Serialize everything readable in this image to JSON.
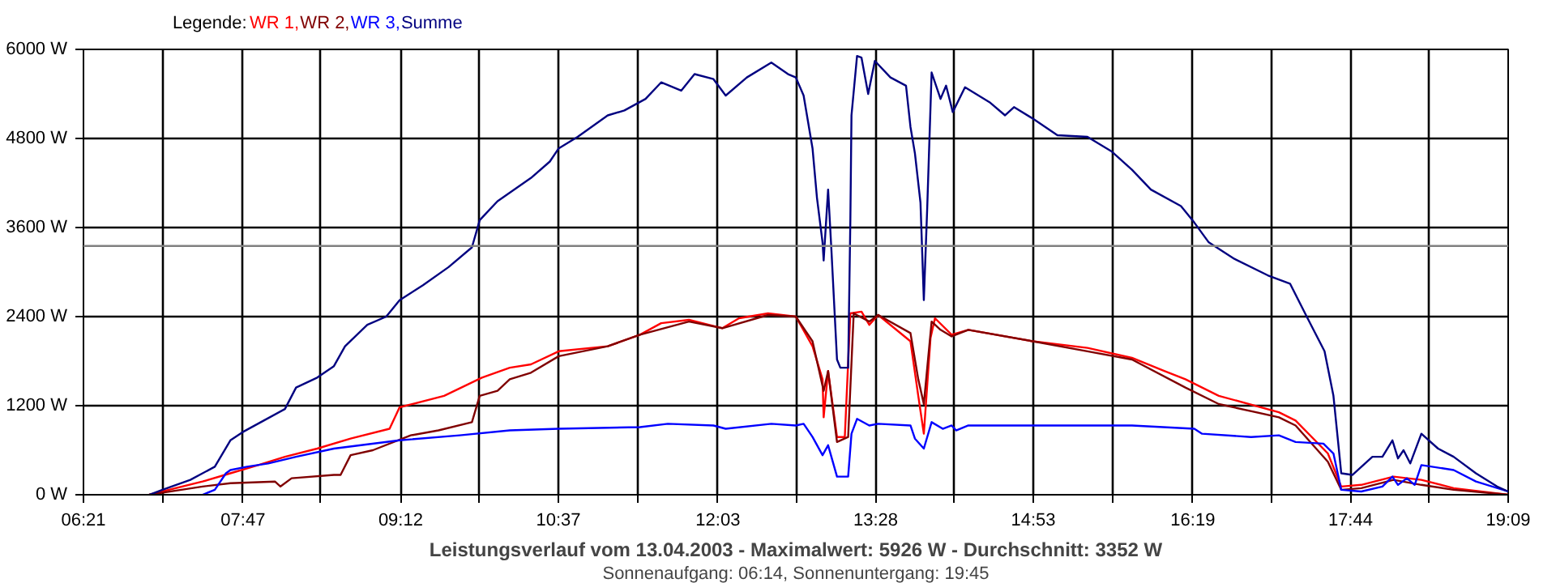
{
  "chart_data": {
    "type": "line",
    "title": "Leistungsverlauf vom 13.04.2003 - Maximalwert: 5926 W - Durchschnitt: 3352 W",
    "subtitle": "Sonnenaufgang: 06:14, Sonnenuntergang: 19:45",
    "legend_title": "Legende:",
    "grid": true,
    "line_style": "solid",
    "xlim": [
      6.35,
      19.15
    ],
    "ylim": [
      0,
      6000
    ],
    "xticks": [
      {
        "value": 6.35,
        "label": "06:21"
      },
      {
        "value": 7.0611,
        "label": null
      },
      {
        "value": 7.7833,
        "label": "07:47"
      },
      {
        "value": 8.4833,
        "label": null
      },
      {
        "value": 9.2,
        "label": "09:12"
      },
      {
        "value": 9.9056,
        "label": null
      },
      {
        "value": 10.6167,
        "label": "10:37"
      },
      {
        "value": 11.3278,
        "label": null
      },
      {
        "value": 12.05,
        "label": "12:03"
      },
      {
        "value": 12.75,
        "label": null
      },
      {
        "value": 13.4667,
        "label": "13:28"
      },
      {
        "value": 14.1722,
        "label": null
      },
      {
        "value": 14.8833,
        "label": "14:53"
      },
      {
        "value": 15.5944,
        "label": null
      },
      {
        "value": 16.3167,
        "label": "16:19"
      },
      {
        "value": 17.0167,
        "label": null
      },
      {
        "value": 17.7333,
        "label": "17:44"
      },
      {
        "value": 18.4389,
        "label": null
      },
      {
        "value": 19.15,
        "label": "19:09"
      }
    ],
    "yticks": [
      {
        "value": 0,
        "label": "0 W"
      },
      {
        "value": 1200,
        "label": "1200 W"
      },
      {
        "value": 2400,
        "label": "2400 W"
      },
      {
        "value": 3600,
        "label": "3600 W"
      },
      {
        "value": 4800,
        "label": "4800 W"
      },
      {
        "value": 6000,
        "label": "6000 W"
      }
    ],
    "ref_lines": [
      {
        "axis": "y",
        "value": 3352,
        "label": null,
        "color": "#808080"
      }
    ],
    "series": [
      {
        "name": "WR 1,",
        "color": "#ff0000",
        "x": [
          6.94,
          7.42,
          7.67,
          7.92,
          8.16,
          8.45,
          8.75,
          9.1,
          9.19,
          9.59,
          9.93,
          10.18,
          10.37,
          10.62,
          11.06,
          11.35,
          11.54,
          11.79,
          12.09,
          12.24,
          12.5,
          12.75,
          12.9,
          12.99,
          13.0,
          13.04,
          13.12,
          13.19,
          13.24,
          13.34,
          13.41,
          13.49,
          13.78,
          13.85,
          13.9,
          13.96,
          14.0,
          14.15,
          14.3,
          14.88,
          15.37,
          15.77,
          16.06,
          16.25,
          16.55,
          17.09,
          17.24,
          17.53,
          17.65,
          17.83,
          18.12,
          18.37,
          18.66,
          19.15
        ],
        "values": [
          0,
          178,
          289,
          400,
          511,
          622,
          756,
          889,
          1178,
          1333,
          1578,
          1711,
          1756,
          1933,
          2000,
          2156,
          2311,
          2356,
          2244,
          2378,
          2444,
          2400,
          2000,
          1556,
          1044,
          1667,
          778,
          778,
          2444,
          2467,
          2289,
          2422,
          2067,
          1333,
          822,
          2111,
          2378,
          2156,
          2222,
          2067,
          1978,
          1844,
          1667,
          1556,
          1333,
          1111,
          1000,
          556,
          111,
          133,
          244,
          200,
          89,
          0
        ]
      },
      {
        "name": "WR 2,",
        "color": "#800000",
        "x": [
          6.94,
          7.23,
          7.42,
          7.67,
          8.07,
          8.12,
          8.22,
          8.6,
          8.66,
          8.75,
          8.95,
          9.29,
          9.54,
          9.84,
          9.91,
          10.07,
          10.18,
          10.37,
          10.62,
          11.06,
          11.35,
          11.79,
          12.09,
          12.5,
          12.75,
          12.9,
          13.0,
          13.04,
          13.12,
          13.22,
          13.27,
          13.41,
          13.49,
          13.78,
          13.85,
          13.9,
          13.97,
          14.05,
          14.15,
          14.3,
          14.88,
          15.37,
          15.77,
          16.25,
          16.55,
          17.09,
          17.24,
          17.53,
          17.65,
          17.83,
          18.12,
          18.37,
          18.66,
          19.15
        ],
        "values": [
          0,
          67,
          111,
          156,
          178,
          111,
          222,
          267,
          267,
          533,
          600,
          800,
          867,
          978,
          1333,
          1400,
          1556,
          1644,
          1867,
          2000,
          2156,
          2333,
          2244,
          2422,
          2400,
          2067,
          1400,
          1667,
          711,
          778,
          2444,
          2333,
          2422,
          2178,
          1556,
          1222,
          2333,
          2222,
          2133,
          2222,
          2067,
          1933,
          1822,
          1444,
          1222,
          1044,
          933,
          444,
          67,
          89,
          200,
          133,
          67,
          0
        ]
      },
      {
        "name": "WR 3,",
        "color": "#0000ff",
        "x": [
          7.42,
          7.53,
          7.63,
          7.67,
          7.82,
          8.01,
          8.26,
          8.6,
          9.19,
          9.73,
          10.18,
          10.62,
          11.35,
          11.6,
          12.01,
          12.12,
          12.53,
          12.75,
          12.82,
          12.9,
          12.99,
          13.04,
          13.12,
          13.22,
          13.25,
          13.3,
          13.41,
          13.49,
          13.78,
          13.82,
          13.9,
          13.97,
          14.07,
          14.15,
          14.19,
          14.3,
          14.59,
          14.88,
          15.77,
          16.33,
          16.4,
          16.84,
          17.09,
          17.24,
          17.49,
          17.58,
          17.65,
          17.83,
          18.02,
          18.11,
          18.16,
          18.24,
          18.31,
          18.37,
          18.66,
          18.86,
          19.15
        ],
        "values": [
          0,
          67,
          289,
          333,
          378,
          422,
          511,
          622,
          733,
          800,
          867,
          889,
          911,
          956,
          933,
          889,
          956,
          933,
          956,
          778,
          533,
          667,
          244,
          244,
          822,
          1022,
          933,
          956,
          933,
          756,
          622,
          978,
          889,
          933,
          867,
          933,
          933,
          933,
          933,
          889,
          822,
          778,
          800,
          711,
          689,
          556,
          67,
          44,
          111,
          244,
          133,
          222,
          133,
          400,
          333,
          178,
          44
        ]
      },
      {
        "name": "Summe",
        "color": "#000080",
        "x": [
          6.94,
          7.06,
          7.31,
          7.53,
          7.67,
          7.78,
          7.97,
          8.16,
          8.26,
          8.45,
          8.6,
          8.7,
          8.9,
          9.07,
          9.19,
          9.4,
          9.63,
          9.84,
          9.91,
          10.07,
          10.37,
          10.54,
          10.62,
          10.79,
          11.06,
          11.21,
          11.4,
          11.54,
          11.72,
          11.84,
          12.01,
          12.12,
          12.31,
          12.53,
          12.68,
          12.75,
          12.82,
          12.9,
          12.94,
          12.99,
          13.0,
          13.04,
          13.07,
          13.12,
          13.15,
          13.22,
          13.24,
          13.25,
          13.3,
          13.34,
          13.4,
          13.46,
          13.6,
          13.74,
          13.78,
          13.82,
          13.87,
          13.9,
          13.93,
          13.97,
          14.05,
          14.1,
          14.16,
          14.27,
          14.49,
          14.63,
          14.71,
          14.88,
          15.1,
          15.37,
          15.59,
          15.77,
          15.94,
          16.21,
          16.33,
          16.46,
          16.69,
          16.99,
          17.19,
          17.34,
          17.5,
          17.58,
          17.64,
          17.65,
          17.75,
          17.93,
          18.02,
          18.11,
          18.16,
          18.21,
          18.27,
          18.37,
          18.52,
          18.66,
          18.86,
          19.05,
          19.15
        ],
        "values": [
          0,
          67,
          200,
          378,
          733,
          844,
          1000,
          1155,
          1444,
          1578,
          1733,
          2000,
          2289,
          2400,
          2622,
          2822,
          3067,
          3333,
          3700,
          3955,
          4267,
          4489,
          4667,
          4822,
          5111,
          5178,
          5333,
          5556,
          5444,
          5667,
          5600,
          5378,
          5622,
          5822,
          5667,
          5622,
          5378,
          4667,
          4000,
          3400,
          3156,
          4111,
          3289,
          1822,
          1711,
          1711,
          3711,
          5111,
          5911,
          5889,
          5400,
          5844,
          5622,
          5511,
          4956,
          4600,
          3933,
          2622,
          3844,
          5689,
          5333,
          5511,
          5156,
          5489,
          5289,
          5111,
          5222,
          5067,
          4844,
          4822,
          4622,
          4378,
          4111,
          3889,
          3667,
          3400,
          3178,
          2956,
          2844,
          2400,
          1933,
          1333,
          444,
          289,
          267,
          511,
          511,
          733,
          489,
          600,
          422,
          822,
          622,
          511,
          289,
          111,
          44
        ]
      }
    ]
  }
}
